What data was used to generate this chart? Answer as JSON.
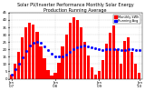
{
  "title": "Solar PV/Inverter Performance Monthly Solar Energy Production Running Average",
  "title_fontsize": 3.5,
  "bar_color": "#ff0000",
  "avg_color": "#0000ff",
  "bg_color": "#ffffff",
  "grid_color": "#cccccc",
  "values": [
    3,
    10,
    18,
    28,
    35,
    38,
    37,
    32,
    22,
    14,
    6,
    2,
    4,
    11,
    22,
    30,
    38,
    42,
    40,
    35,
    25,
    16,
    8,
    3,
    5,
    13,
    24,
    31,
    36,
    20,
    10,
    26,
    28,
    18,
    10,
    4
  ],
  "running_avg": [
    3,
    6.5,
    10.3,
    14.75,
    18.8,
    22.7,
    24.6,
    25.4,
    24.3,
    22.2,
    19.4,
    17.1,
    15.3,
    14.9,
    15.4,
    16.5,
    18.1,
    19.9,
    21.4,
    22.3,
    22.5,
    22.2,
    21.5,
    20.5,
    20.0,
    19.8,
    19.9,
    20.1,
    20.3,
    20.1,
    19.5,
    19.8,
    20.0,
    20.0,
    19.7,
    19.3
  ],
  "ylim": [
    0,
    45
  ],
  "yticks": [
    0,
    5,
    10,
    15,
    20,
    25,
    30,
    35,
    40,
    45
  ],
  "legend_bar": "Monthly kWh",
  "legend_avg": "Running Avg",
  "tick_fontsize": 2.8
}
